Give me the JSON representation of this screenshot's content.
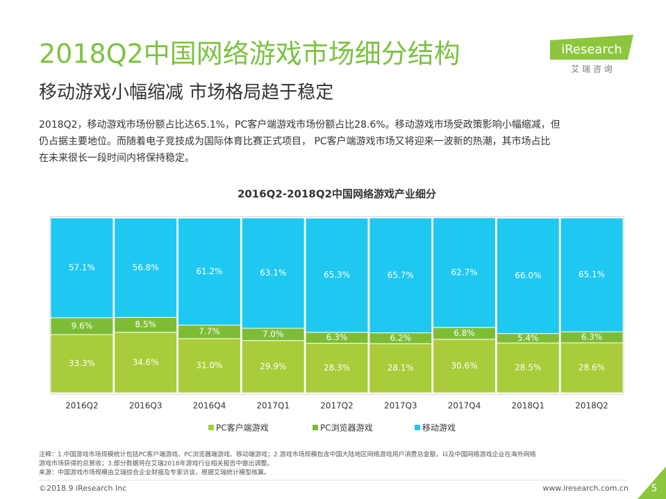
{
  "header": {
    "title": "2018Q2中国网络游戏市场细分结构",
    "subtitle": "移动游戏小幅缩减 市场格局趋于稳定",
    "paragraph": [
      "2018Q2，移动游戏市场份额占比达65.1%，PC客户端游戏市场份额占比28.6%。移动游戏市场受政策影响小幅缩减，但",
      "仍占据主要地位。而随着电子竞技成为国际体育比赛正式项目， PC客户端游戏市场又将迎来一波新的热潮，其市场占比",
      "在未来很长一段时间内将保持稳定。"
    ]
  },
  "logo": {
    "text": "iResearch",
    "subtext": "艾 瑞 咨 询"
  },
  "chart_data": {
    "type": "stacked-bar",
    "title": "2016Q2-2018Q2中国网络游戏产业细分",
    "categories": [
      "2016Q2",
      "2016Q3",
      "2016Q4",
      "2017Q1",
      "2017Q2",
      "2017Q3",
      "2017Q4",
      "2018Q1",
      "2018Q2"
    ],
    "ylim": [
      0,
      100
    ],
    "series": [
      {
        "name": "PC客户端游戏",
        "color": "#a8cc3a",
        "values": [
          33.3,
          34.6,
          31.0,
          29.9,
          28.3,
          28.1,
          30.6,
          28.5,
          28.6
        ],
        "value_labels": [
          "33.3%",
          "34.6%",
          "31.0%",
          "29.9%",
          "28.3%",
          "28.1%",
          "30.6%",
          "28.5%",
          "28.6%"
        ]
      },
      {
        "name": "PC浏览器游戏",
        "color": "#7dbd36",
        "values": [
          9.6,
          8.5,
          7.7,
          7.0,
          6.3,
          6.2,
          6.8,
          5.4,
          6.3
        ],
        "value_labels": [
          "9.6%",
          "8.5%",
          "7.7%",
          "7.0%",
          "6.3%",
          "6.2%",
          "6.8%",
          "5.4%",
          "6.3%"
        ]
      },
      {
        "name": "移动游戏",
        "color": "#1fc8f0",
        "values": [
          57.1,
          56.8,
          61.2,
          63.1,
          65.3,
          65.7,
          62.7,
          66.0,
          65.1
        ],
        "value_labels": [
          "57.1%",
          "56.8%",
          "61.2%",
          "63.1%",
          "65.3%",
          "65.7%",
          "62.7%",
          "66.0%",
          "65.1%"
        ]
      }
    ]
  },
  "footnotes": [
    "注释：1.中国游戏市场规模统计包括PC客户端游戏、PC浏览器端游戏、移动端游戏；2.游戏市场规模包含中国大陆地区网络游戏用户消费总金额，以及中国网络游戏企业在海外网络",
    "游戏市场获得的总营收；3.部分数据将在艾瑞2018年游戏行业相关报告中做出调整。",
    "来源：中国游戏市场规模由艾瑞综合企业财报及专家访谈，根据艾瑞统计模型核算。"
  ],
  "footer": {
    "copyright": "©2018.9 iResearch Inc",
    "website": "www.iresearch.com.cn",
    "page": "5"
  }
}
